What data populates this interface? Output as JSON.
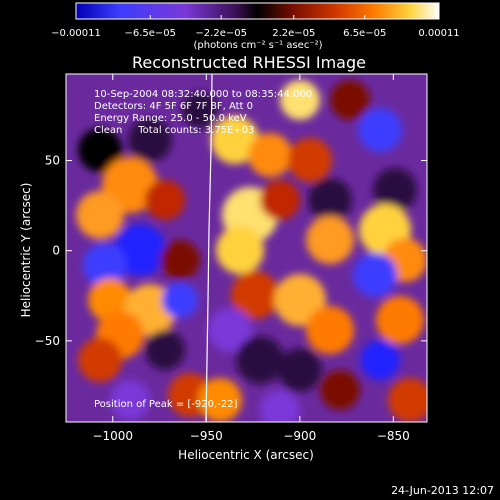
{
  "chart_data": {
    "type": "heatmap",
    "title": "Reconstructed RHESSI Image",
    "xlabel": "Heliocentric X (arcsec)",
    "ylabel": "Heliocentric Y (arcsec)",
    "xlim": [
      -1025,
      -832
    ],
    "ylim": [
      -95,
      98
    ],
    "xticks": [
      -1000,
      -950,
      -900,
      -850
    ],
    "xtick_labels": [
      "−1000",
      "−950",
      "−900",
      "−850"
    ],
    "yticks": [
      -50,
      0,
      50
    ],
    "ytick_labels": [
      "−50",
      "0",
      "50"
    ],
    "colorbar": {
      "ticks": [
        -0.00011,
        -6.5e-05,
        -2.2e-05,
        2.2e-05,
        6.5e-05,
        0.00011
      ],
      "tick_labels": [
        "−0.00011",
        "−6.5e−05",
        "−2.2e−05",
        "2.2e−05",
        "6.5e−05",
        "0.00011"
      ],
      "range": [
        -0.00011,
        0.00011
      ],
      "unit_label": "(photons cm⁻² s⁻¹ asec⁻²)",
      "colors": [
        "#0000b4",
        "#3c3cff",
        "#7a38d8",
        "#3a1055",
        "#000000",
        "#7a0e00",
        "#d23a00",
        "#ff7a00",
        "#ffd23c",
        "#ffffff"
      ]
    },
    "annotations": {
      "time": "10-Sep-2004 08:32:40.000 to 08:35:44.000",
      "detectors": "Detectors: 4F 5F 6F 7F 8F, Att 0",
      "energy": "Energy Range: 25.0 - 50.0 keV",
      "clean": "Clean     Total counts: 3.75E+03",
      "peak": "Position of Peak = [-920,-22]"
    },
    "peak_position": [
      -920,
      -22
    ],
    "grid": false
  },
  "footer": {
    "date": "24-Jun-2013 12:07"
  }
}
